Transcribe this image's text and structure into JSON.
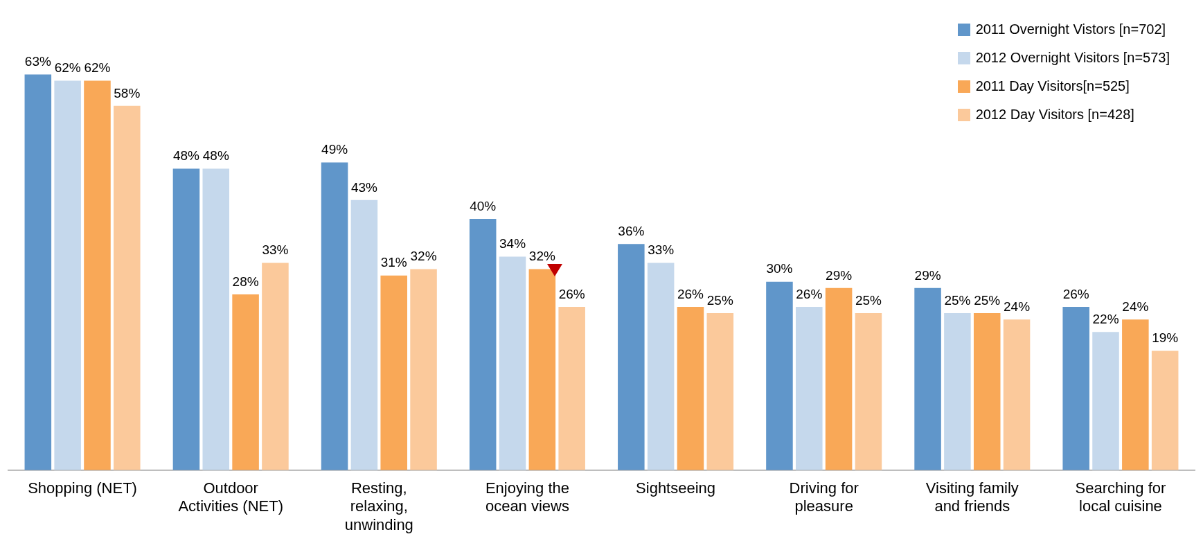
{
  "chart_data": {
    "type": "bar",
    "categories": [
      "Shopping (NET)",
      "Outdoor Activities (NET)",
      "Resting, relaxing, unwinding",
      "Enjoying the ocean views",
      "Sightseeing",
      "Driving for pleasure",
      "Visiting family and friends",
      "Searching for local cuisine"
    ],
    "series": [
      {
        "name": "2011 Overnight Vistors [n=702]",
        "color": "#6096ca",
        "values": [
          63,
          48,
          49,
          40,
          36,
          30,
          29,
          26
        ],
        "value_labels": [
          "63%",
          "48%",
          "49%",
          "40%",
          "36%",
          "30%",
          "29%",
          "26%"
        ]
      },
      {
        "name": "2012 Overnight Visitors [n=573]",
        "color": "#c5d8ec",
        "values": [
          62,
          48,
          43,
          34,
          33,
          26,
          25,
          22
        ],
        "value_labels": [
          "62%",
          "48%",
          "43%",
          "34%",
          "33%",
          "26%",
          "25%",
          "22%"
        ]
      },
      {
        "name": "2011 Day Visitors[n=525]",
        "color": "#f9a857",
        "values": [
          62,
          28,
          31,
          32,
          26,
          29,
          25,
          24
        ],
        "value_labels": [
          "62%",
          "28%",
          "31%",
          "32%",
          "26%",
          "29%",
          "25%",
          "24%"
        ]
      },
      {
        "name": "2012 Day Visitors [n=428]",
        "color": "#fbc99b",
        "values": [
          58,
          33,
          32,
          26,
          25,
          25,
          24,
          19
        ],
        "value_labels": [
          "58%",
          "33%",
          "32%",
          "26%",
          "25%",
          "25%",
          "24%",
          "19%"
        ]
      }
    ],
    "legend": "top right",
    "grid": false
  }
}
